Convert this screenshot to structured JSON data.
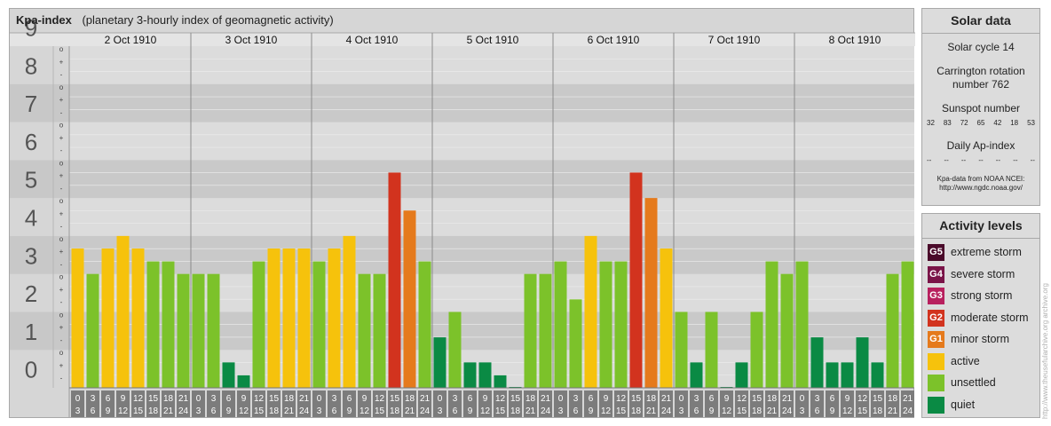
{
  "chart_title": "Kpa-index",
  "chart_subtitle": "(planetary 3-hourly index of geomagnetic activity)",
  "chart_data": {
    "type": "bar",
    "title": "Kpa-index",
    "subtitle": "(planetary 3-hourly index of geomagnetic activity)",
    "ylim": [
      0,
      9
    ],
    "y_ticks": [
      "0",
      "1",
      "2",
      "3",
      "4",
      "5",
      "6",
      "7",
      "8",
      "9"
    ],
    "sub_ticks": [
      "-",
      "+",
      "o"
    ],
    "days": [
      "2 Oct 1910",
      "3 Oct 1910",
      "4 Oct 1910",
      "5 Oct 1910",
      "6 Oct 1910",
      "7 Oct 1910",
      "8 Oct 1910"
    ],
    "interval_labels": [
      [
        "0",
        "3"
      ],
      [
        "3",
        "6"
      ],
      [
        "6",
        "9"
      ],
      [
        "9",
        "12"
      ],
      [
        "12",
        "15"
      ],
      [
        "15",
        "18"
      ],
      [
        "18",
        "21"
      ],
      [
        "21",
        "24"
      ]
    ],
    "values": [
      3.67,
      3.0,
      3.67,
      4.0,
      3.67,
      3.33,
      3.33,
      3.0,
      3.0,
      3.0,
      0.67,
      0.33,
      3.33,
      3.67,
      3.67,
      3.67,
      3.33,
      3.67,
      4.0,
      3.0,
      3.0,
      5.67,
      4.67,
      3.33,
      1.33,
      2.0,
      0.67,
      0.67,
      0.33,
      0.0,
      3.0,
      3.0,
      3.33,
      2.33,
      4.0,
      3.33,
      3.33,
      5.67,
      5.0,
      3.67,
      2.0,
      0.67,
      2.0,
      0.0,
      0.67,
      2.0,
      3.33,
      3.0,
      3.33,
      1.33,
      0.67,
      0.67,
      1.33,
      0.67,
      3.0,
      3.33
    ],
    "colors": {
      "quiet": "#0a8a44",
      "unsettled": "#7cc22a",
      "active": "#f6c20c",
      "minor": "#e57a1c",
      "moderate": "#d2331e"
    }
  },
  "solar_data": {
    "title": "Solar data",
    "cycle": "Solar cycle 14",
    "carrington_line1": "Carrington rotation",
    "carrington_line2": "number 762",
    "sunspot_label": "Sunspot number",
    "sunspot_values": [
      "32",
      "83",
      "72",
      "65",
      "42",
      "18",
      "53"
    ],
    "ap_label": "Daily Ap-index",
    "ap_values": [
      "--",
      "--",
      "--",
      "--",
      "--",
      "--",
      "--"
    ],
    "ncei_line1": "Kpa-data from NOAA NCEI:",
    "ncei_line2": "http://www.ngdc.noaa.gov/"
  },
  "activity_levels": {
    "title": "Activity levels",
    "items": [
      {
        "code": "G5",
        "label": "extreme storm",
        "color": "#4a0a2a"
      },
      {
        "code": "G4",
        "label": "severe storm",
        "color": "#7a1448"
      },
      {
        "code": "G3",
        "label": "strong storm",
        "color": "#b8205e"
      },
      {
        "code": "G2",
        "label": "moderate storm",
        "color": "#d2331e"
      },
      {
        "code": "G1",
        "label": "minor storm",
        "color": "#e57a1c"
      },
      {
        "code": "",
        "label": "active",
        "color": "#f6c20c"
      },
      {
        "code": "",
        "label": "unsettled",
        "color": "#7cc22a"
      },
      {
        "code": "",
        "label": "quiet",
        "color": "#0a8a44"
      }
    ]
  },
  "watermark": "http://www.theusefularchive.org archive.org"
}
